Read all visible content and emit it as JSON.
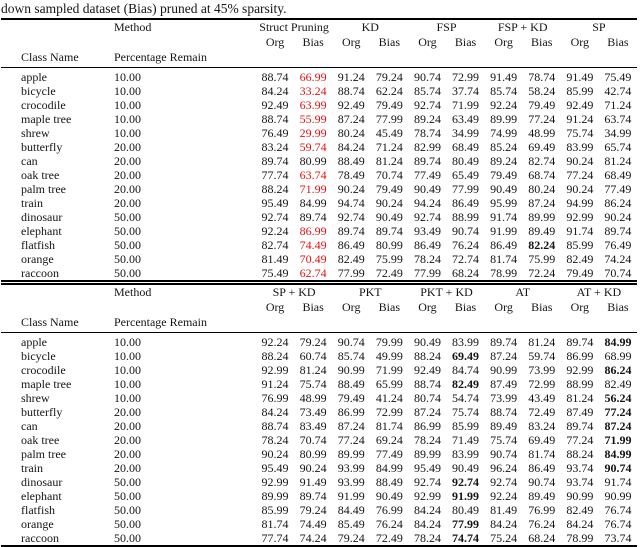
{
  "caption": "down sampled dataset (Bias) pruned at 45% sparsity.",
  "colors": {
    "highlight_red": "#e31212",
    "text": "#141414",
    "rule": "#000000"
  },
  "labels": {
    "method": "Method",
    "class_name": "Class Name",
    "percentage_remain": "Percentage Remain",
    "org": "Org",
    "bias": "Bias"
  },
  "tables": [
    {
      "name": "results-table-top",
      "groups": [
        "Struct Pruning",
        "KD",
        "FSP",
        "FSP + KD",
        "SP"
      ],
      "rows": [
        {
          "class_name": "apple",
          "percentage_remain": "10.00",
          "values": [
            "88.74",
            "66.99",
            "91.24",
            "79.24",
            "90.74",
            "72.99",
            "91.49",
            "78.74",
            "91.49",
            "75.49"
          ],
          "red": [
            1
          ],
          "bold": []
        },
        {
          "class_name": "bicycle",
          "percentage_remain": "10.00",
          "values": [
            "84.24",
            "33.24",
            "88.74",
            "62.24",
            "85.74",
            "37.74",
            "85.74",
            "58.24",
            "85.99",
            "42.74"
          ],
          "red": [
            1
          ],
          "bold": []
        },
        {
          "class_name": "crocodile",
          "percentage_remain": "10.00",
          "values": [
            "92.49",
            "63.99",
            "92.49",
            "79.49",
            "92.74",
            "71.99",
            "92.24",
            "79.49",
            "92.49",
            "71.24"
          ],
          "red": [
            1
          ],
          "bold": []
        },
        {
          "class_name": "maple tree",
          "percentage_remain": "10.00",
          "values": [
            "88.74",
            "55.99",
            "87.24",
            "77.99",
            "89.24",
            "63.49",
            "89.99",
            "77.24",
            "91.24",
            "63.74"
          ],
          "red": [
            1
          ],
          "bold": []
        },
        {
          "class_name": "shrew",
          "percentage_remain": "10.00",
          "values": [
            "76.49",
            "29.99",
            "80.24",
            "45.49",
            "78.74",
            "34.99",
            "74.99",
            "48.99",
            "75.74",
            "34.99"
          ],
          "red": [
            1
          ],
          "bold": []
        },
        {
          "class_name": "butterfly",
          "percentage_remain": "20.00",
          "values": [
            "83.24",
            "59.74",
            "84.24",
            "71.24",
            "82.99",
            "68.49",
            "85.24",
            "69.49",
            "83.99",
            "65.74"
          ],
          "red": [
            1
          ],
          "bold": []
        },
        {
          "class_name": "can",
          "percentage_remain": "20.00",
          "values": [
            "89.74",
            "80.99",
            "88.49",
            "81.24",
            "89.74",
            "80.49",
            "89.24",
            "82.74",
            "90.24",
            "81.24"
          ],
          "red": [],
          "bold": []
        },
        {
          "class_name": "oak tree",
          "percentage_remain": "20.00",
          "values": [
            "77.74",
            "63.74",
            "78.49",
            "70.74",
            "77.49",
            "65.49",
            "79.49",
            "68.74",
            "77.24",
            "68.49"
          ],
          "red": [
            1
          ],
          "bold": []
        },
        {
          "class_name": "palm tree",
          "percentage_remain": "20.00",
          "values": [
            "88.24",
            "71.99",
            "90.24",
            "79.49",
            "90.49",
            "77.99",
            "90.49",
            "80.24",
            "90.24",
            "77.49"
          ],
          "red": [
            1
          ],
          "bold": []
        },
        {
          "class_name": "train",
          "percentage_remain": "20.00",
          "values": [
            "95.49",
            "84.99",
            "94.74",
            "90.24",
            "94.24",
            "86.49",
            "95.99",
            "87.24",
            "94.99",
            "86.24"
          ],
          "red": [],
          "bold": []
        },
        {
          "class_name": "dinosaur",
          "percentage_remain": "50.00",
          "values": [
            "92.74",
            "89.74",
            "92.74",
            "90.49",
            "92.74",
            "88.99",
            "91.74",
            "89.99",
            "92.99",
            "90.24"
          ],
          "red": [],
          "bold": []
        },
        {
          "class_name": "elephant",
          "percentage_remain": "50.00",
          "values": [
            "92.24",
            "86.99",
            "89.74",
            "89.74",
            "93.49",
            "90.74",
            "91.99",
            "89.49",
            "91.74",
            "89.74"
          ],
          "red": [
            1
          ],
          "bold": []
        },
        {
          "class_name": "flatfish",
          "percentage_remain": "50.00",
          "values": [
            "82.74",
            "74.49",
            "86.49",
            "80.99",
            "86.49",
            "76.24",
            "86.49",
            "82.24",
            "85.99",
            "76.49"
          ],
          "red": [
            1
          ],
          "bold": [
            7
          ]
        },
        {
          "class_name": "orange",
          "percentage_remain": "50.00",
          "values": [
            "81.49",
            "70.49",
            "82.49",
            "75.99",
            "78.24",
            "72.74",
            "81.74",
            "75.99",
            "82.49",
            "74.24"
          ],
          "red": [
            1
          ],
          "bold": []
        },
        {
          "class_name": "raccoon",
          "percentage_remain": "50.00",
          "values": [
            "75.49",
            "62.74",
            "77.99",
            "72.49",
            "77.99",
            "68.24",
            "78.99",
            "72.24",
            "79.49",
            "70.74"
          ],
          "red": [
            1
          ],
          "bold": []
        }
      ]
    },
    {
      "name": "results-table-bottom",
      "groups": [
        "SP + KD",
        "PKT",
        "PKT + KD",
        "AT",
        "AT + KD"
      ],
      "rows": [
        {
          "class_name": "apple",
          "percentage_remain": "10.00",
          "values": [
            "92.24",
            "79.24",
            "90.74",
            "79.99",
            "90.49",
            "83.99",
            "89.74",
            "81.24",
            "89.74",
            "84.99"
          ],
          "red": [],
          "bold": [
            9
          ]
        },
        {
          "class_name": "bicycle",
          "percentage_remain": "10.00",
          "values": [
            "88.24",
            "60.74",
            "85.74",
            "49.99",
            "88.24",
            "69.49",
            "87.24",
            "59.74",
            "86.99",
            "68.99"
          ],
          "red": [],
          "bold": [
            5
          ]
        },
        {
          "class_name": "crocodile",
          "percentage_remain": "10.00",
          "values": [
            "92.99",
            "81.24",
            "90.99",
            "71.99",
            "92.49",
            "84.74",
            "90.99",
            "73.99",
            "92.99",
            "86.24"
          ],
          "red": [],
          "bold": [
            9
          ]
        },
        {
          "class_name": "maple tree",
          "percentage_remain": "10.00",
          "values": [
            "91.24",
            "75.74",
            "88.49",
            "65.99",
            "88.74",
            "82.49",
            "87.49",
            "72.99",
            "88.99",
            "82.49"
          ],
          "red": [],
          "bold": [
            5
          ]
        },
        {
          "class_name": "shrew",
          "percentage_remain": "10.00",
          "values": [
            "76.99",
            "48.99",
            "79.49",
            "41.24",
            "80.74",
            "54.74",
            "73.99",
            "43.49",
            "81.24",
            "56.24"
          ],
          "red": [],
          "bold": [
            9
          ]
        },
        {
          "class_name": "butterfly",
          "percentage_remain": "20.00",
          "values": [
            "84.24",
            "73.49",
            "86.99",
            "72.99",
            "87.24",
            "75.74",
            "88.74",
            "72.49",
            "87.49",
            "77.24"
          ],
          "red": [],
          "bold": [
            9
          ]
        },
        {
          "class_name": "can",
          "percentage_remain": "20.00",
          "values": [
            "88.74",
            "83.49",
            "87.24",
            "81.74",
            "86.99",
            "85.99",
            "89.49",
            "83.24",
            "89.74",
            "87.24"
          ],
          "red": [],
          "bold": [
            9
          ]
        },
        {
          "class_name": "oak tree",
          "percentage_remain": "20.00",
          "values": [
            "78.24",
            "70.74",
            "77.24",
            "69.24",
            "78.24",
            "71.49",
            "75.74",
            "69.49",
            "77.24",
            "71.99"
          ],
          "red": [],
          "bold": [
            9
          ]
        },
        {
          "class_name": "palm tree",
          "percentage_remain": "20.00",
          "values": [
            "90.24",
            "80.99",
            "89.99",
            "77.49",
            "89.99",
            "83.99",
            "90.74",
            "81.74",
            "88.24",
            "84.99"
          ],
          "red": [],
          "bold": [
            9
          ]
        },
        {
          "class_name": "train",
          "percentage_remain": "20.00",
          "values": [
            "95.49",
            "90.24",
            "93.99",
            "84.99",
            "95.49",
            "90.49",
            "96.24",
            "86.49",
            "93.74",
            "90.74"
          ],
          "red": [],
          "bold": [
            9
          ]
        },
        {
          "class_name": "dinosaur",
          "percentage_remain": "50.00",
          "values": [
            "92.99",
            "91.49",
            "93.99",
            "88.49",
            "92.74",
            "92.74",
            "92.74",
            "90.74",
            "93.74",
            "91.74"
          ],
          "red": [],
          "bold": [
            5
          ]
        },
        {
          "class_name": "elephant",
          "percentage_remain": "50.00",
          "values": [
            "89.99",
            "89.74",
            "91.99",
            "90.49",
            "92.99",
            "91.99",
            "92.24",
            "89.49",
            "90.99",
            "90.99"
          ],
          "red": [],
          "bold": [
            5
          ]
        },
        {
          "class_name": "flatfish",
          "percentage_remain": "50.00",
          "values": [
            "85.99",
            "79.24",
            "84.49",
            "76.99",
            "84.24",
            "80.49",
            "81.49",
            "76.99",
            "82.49",
            "76.74"
          ],
          "red": [],
          "bold": []
        },
        {
          "class_name": "orange",
          "percentage_remain": "50.00",
          "values": [
            "81.74",
            "74.49",
            "85.49",
            "76.24",
            "84.24",
            "77.99",
            "84.24",
            "76.24",
            "84.24",
            "76.74"
          ],
          "red": [],
          "bold": [
            5
          ]
        },
        {
          "class_name": "raccoon",
          "percentage_remain": "50.00",
          "values": [
            "77.74",
            "74.24",
            "79.24",
            "72.49",
            "78.24",
            "74.74",
            "75.24",
            "68.24",
            "78.99",
            "73.74"
          ],
          "red": [],
          "bold": [
            5
          ]
        }
      ]
    }
  ]
}
